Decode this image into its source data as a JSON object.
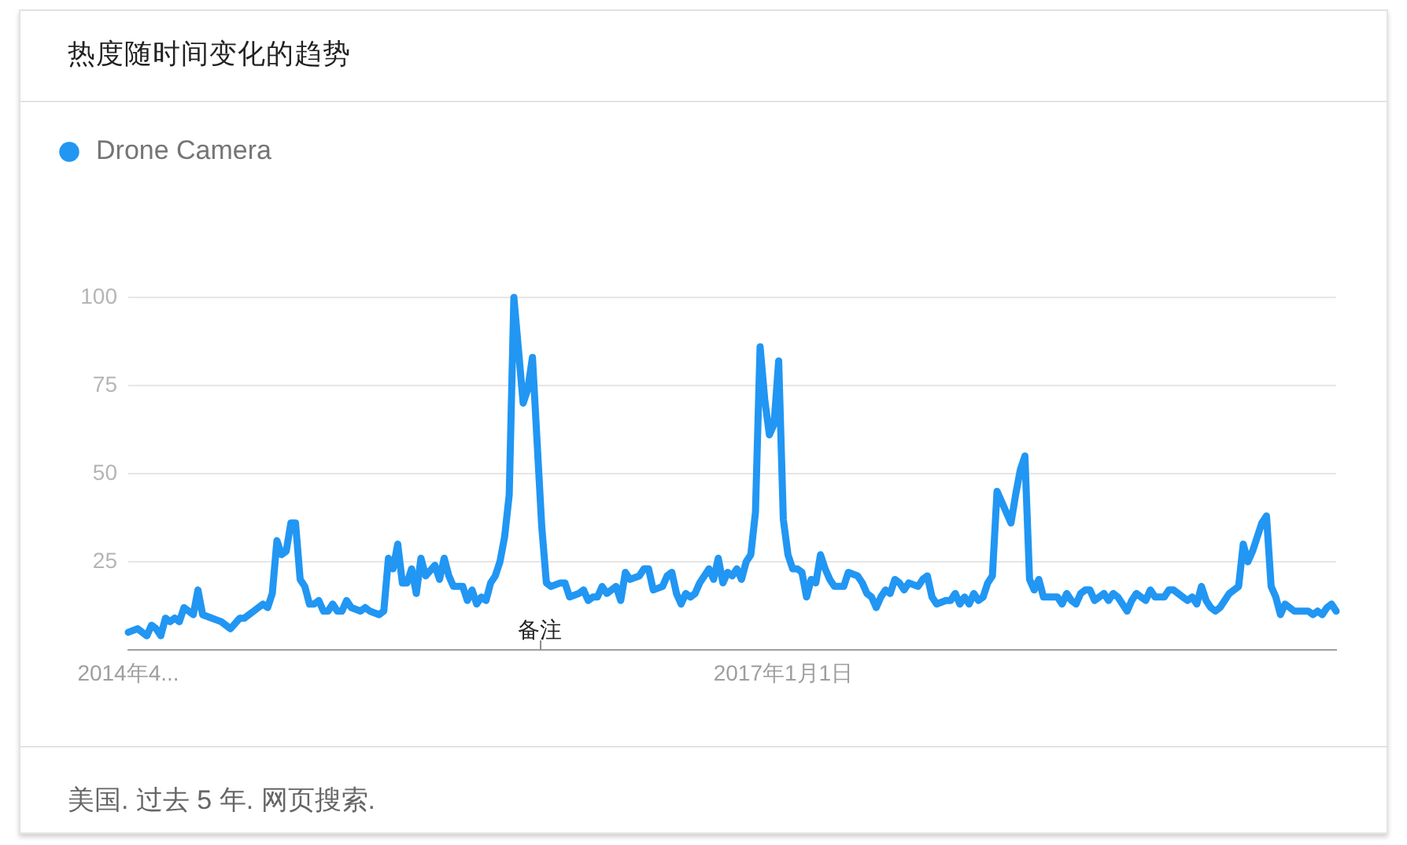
{
  "chart_data": {
    "type": "line",
    "title": "热度随时间变化的趋势",
    "annotations": [
      "备注",
      "美国. 过去 5 年. 网页搜索."
    ],
    "x": [
      "2014-04-20",
      "2014-05-04",
      "2014-05-18",
      "2014-05-25",
      "2014-06-01",
      "2014-06-08",
      "2014-06-15",
      "2014-06-22",
      "2014-06-29",
      "2014-07-06",
      "2014-07-13",
      "2014-07-27",
      "2014-08-03",
      "2014-08-10",
      "2014-08-24",
      "2014-09-07",
      "2014-09-21",
      "2014-10-05",
      "2014-10-12",
      "2014-10-26",
      "2014-11-09",
      "2014-11-16",
      "2014-11-23",
      "2014-11-30",
      "2014-12-07",
      "2014-12-14",
      "2014-12-21",
      "2014-12-28",
      "2015-01-04",
      "2015-01-11",
      "2015-01-18",
      "2015-01-25",
      "2015-02-01",
      "2015-02-08",
      "2015-02-15",
      "2015-02-22",
      "2015-03-01",
      "2015-03-08",
      "2015-03-15",
      "2015-03-22",
      "2015-04-05",
      "2015-04-12",
      "2015-04-19",
      "2015-05-03",
      "2015-05-10",
      "2015-05-17",
      "2015-05-24",
      "2015-05-31",
      "2015-06-07",
      "2015-06-14",
      "2015-06-21",
      "2015-06-28",
      "2015-07-05",
      "2015-07-12",
      "2015-07-26",
      "2015-08-02",
      "2015-08-09",
      "2015-08-16",
      "2015-08-23",
      "2015-09-06",
      "2015-09-13",
      "2015-09-20",
      "2015-09-27",
      "2015-10-04",
      "2015-10-11",
      "2015-10-18",
      "2015-10-25",
      "2015-11-01",
      "2015-11-08",
      "2015-11-15",
      "2015-11-22",
      "2015-11-29",
      "2015-12-06",
      "2015-12-13",
      "2015-12-20",
      "2015-12-27",
      "2016-01-03",
      "2016-01-10",
      "2016-01-17",
      "2016-01-31",
      "2016-02-07",
      "2016-02-14",
      "2016-02-28",
      "2016-03-06",
      "2016-03-13",
      "2016-03-20",
      "2016-03-27",
      "2016-04-03",
      "2016-04-10",
      "2016-04-17",
      "2016-04-24",
      "2016-05-01",
      "2016-05-08",
      "2016-05-15",
      "2016-05-29",
      "2016-06-05",
      "2016-06-12",
      "2016-06-19",
      "2016-07-03",
      "2016-07-10",
      "2016-07-17",
      "2016-07-24",
      "2016-07-31",
      "2016-08-07",
      "2016-08-14",
      "2016-08-21",
      "2016-08-28",
      "2016-09-04",
      "2016-09-11",
      "2016-09-18",
      "2016-09-25",
      "2016-10-02",
      "2016-10-09",
      "2016-10-16",
      "2016-10-23",
      "2016-10-30",
      "2016-11-06",
      "2016-11-13",
      "2016-11-20",
      "2016-11-27",
      "2016-12-04",
      "2016-12-11",
      "2016-12-18",
      "2016-12-25",
      "2017-01-01",
      "2017-01-08",
      "2017-01-15",
      "2017-01-22",
      "2017-01-29",
      "2017-02-05",
      "2017-02-12",
      "2017-02-19",
      "2017-02-26",
      "2017-03-05",
      "2017-03-12",
      "2017-03-19",
      "2017-04-02",
      "2017-04-09",
      "2017-04-23",
      "2017-04-30",
      "2017-05-07",
      "2017-05-14",
      "2017-05-21",
      "2017-05-28",
      "2017-06-04",
      "2017-06-11",
      "2017-06-18",
      "2017-06-25",
      "2017-07-02",
      "2017-07-09",
      "2017-07-23",
      "2017-07-30",
      "2017-08-06",
      "2017-08-13",
      "2017-08-20",
      "2017-09-03",
      "2017-09-10",
      "2017-09-17",
      "2017-09-24",
      "2017-10-01",
      "2017-10-08",
      "2017-10-15",
      "2017-10-22",
      "2017-10-29",
      "2017-11-05",
      "2017-11-12",
      "2017-11-19",
      "2017-11-26",
      "2017-12-03",
      "2017-12-10",
      "2017-12-17",
      "2017-12-24",
      "2017-12-31",
      "2018-01-07",
      "2018-01-14",
      "2018-01-21",
      "2018-01-28",
      "2018-02-18",
      "2018-02-25",
      "2018-03-04",
      "2018-03-11",
      "2018-03-18",
      "2018-03-25",
      "2018-04-01",
      "2018-04-08",
      "2018-04-15",
      "2018-04-22",
      "2018-04-29",
      "2018-05-06",
      "2018-05-13",
      "2018-05-20",
      "2018-06-03",
      "2018-06-10",
      "2018-06-17",
      "2018-06-24",
      "2018-07-01",
      "2018-07-08",
      "2018-07-15",
      "2018-07-29",
      "2018-08-05",
      "2018-08-12",
      "2018-08-19",
      "2018-08-26",
      "2018-09-02",
      "2018-09-09",
      "2018-09-16",
      "2018-09-23",
      "2018-09-30",
      "2018-10-07",
      "2018-10-14",
      "2018-10-21",
      "2018-10-28",
      "2018-11-04",
      "2018-11-11",
      "2018-11-18",
      "2018-11-25",
      "2018-12-02",
      "2018-12-09",
      "2018-12-16",
      "2018-12-23",
      "2018-12-30",
      "2019-01-06",
      "2019-01-13",
      "2019-01-20",
      "2019-01-27",
      "2019-02-03",
      "2019-02-10",
      "2019-02-24",
      "2019-03-03",
      "2019-03-10",
      "2019-03-17",
      "2019-03-24",
      "2019-03-31",
      "2019-04-07",
      "2019-04-14"
    ],
    "series": [
      {
        "name": "Drone Camera",
        "color": "#2196f3",
        "values": [
          5,
          6,
          4,
          7,
          6,
          4,
          9,
          8,
          9,
          8,
          12,
          10,
          17,
          10,
          9,
          8,
          6,
          9,
          9,
          11,
          13,
          12,
          16,
          31,
          27,
          28,
          36,
          36,
          20,
          18,
          13,
          13,
          14,
          11,
          11,
          13,
          11,
          11,
          14,
          12,
          11,
          12,
          11,
          10,
          11,
          26,
          23,
          30,
          19,
          19,
          23,
          16,
          26,
          21,
          24,
          20,
          26,
          21,
          18,
          18,
          14,
          17,
          13,
          15,
          14,
          19,
          21,
          25,
          32,
          44,
          100,
          85,
          70,
          74,
          83,
          59,
          35,
          19,
          18,
          19,
          19,
          15,
          16,
          17,
          14,
          15,
          15,
          18,
          16,
          17,
          18,
          14,
          22,
          20,
          21,
          23,
          23,
          17,
          18,
          21,
          22,
          16,
          13,
          16,
          15,
          16,
          19,
          21,
          23,
          20,
          26,
          19,
          22,
          21,
          23,
          20,
          25,
          27,
          39,
          86,
          71,
          61,
          64,
          82,
          37,
          27,
          23,
          23,
          22,
          15,
          20,
          19,
          27,
          23,
          20,
          18,
          18,
          22,
          21,
          19,
          16,
          15,
          12,
          15,
          17,
          16,
          20,
          19,
          17,
          19,
          18,
          20,
          21,
          15,
          13,
          14,
          14,
          16,
          13,
          15,
          13,
          16,
          14,
          15,
          19,
          21,
          45,
          42,
          39,
          36,
          44,
          51,
          55,
          20,
          17,
          20,
          15,
          15,
          13,
          16,
          14,
          13,
          16,
          17,
          17,
          14,
          15,
          16,
          14,
          16,
          15,
          11,
          14,
          16,
          15,
          14,
          17,
          15,
          15,
          17,
          17,
          16,
          15,
          14,
          15,
          13,
          18,
          14,
          12,
          11,
          12,
          14,
          16,
          17,
          18,
          30,
          25,
          28,
          32,
          36,
          38,
          18,
          15,
          10,
          13,
          12,
          11,
          11,
          11,
          10,
          11,
          10,
          12,
          13,
          11
        ]
      }
    ],
    "xlim": [
      "2014-04-20",
      "2019-04-14"
    ],
    "xticks": [
      {
        "value": "2014-04-20",
        "label": "2014年4..."
      },
      {
        "value": "2017-01-01",
        "label": "2017年1月1日"
      }
    ],
    "ylim": [
      0,
      100
    ],
    "yticks": [
      25,
      50,
      75,
      100
    ],
    "grid": "y",
    "legend": "top left",
    "marker": "none",
    "line_style": "solid"
  }
}
